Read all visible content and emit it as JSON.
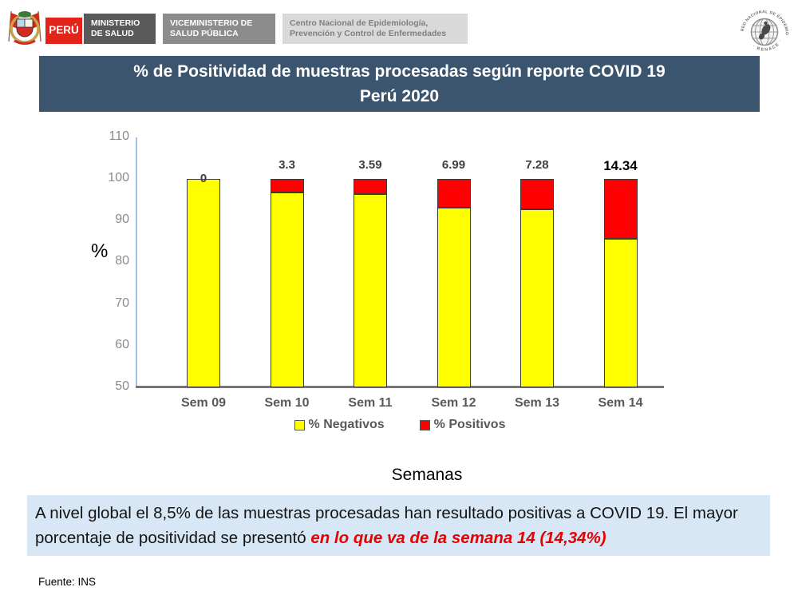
{
  "header": {
    "brand": [
      {
        "label": "PERÚ",
        "bg": "#e2231a",
        "fg": "#ffffff"
      },
      {
        "label": "MINISTERIO\nDE SALUD",
        "bg": "#595959",
        "fg": "#ffffff"
      },
      {
        "label": "VICEMINISTERIO DE\nSALUD PÚBLICA",
        "bg": "#8c8c8c",
        "fg": "#ffffff"
      },
      {
        "label": "Centro Nacional de Epidemiología,\nPrevención y Control de Enfermedades",
        "bg": "#d9d9d9",
        "fg": "#7f7f7f"
      }
    ],
    "renace": {
      "text_top": "RED NACIONAL DE EPIDEMIOLOGIA",
      "text_bottom": "· RENACE ·"
    }
  },
  "title": {
    "line1": "% de Positividad de muestras procesadas según reporte COVID 19",
    "line2": "Perú 2020",
    "bg": "#3c556f"
  },
  "chart_data": {
    "type": "bar",
    "stacked": true,
    "categories": [
      "Sem 09",
      "Sem 10",
      "Sem 11",
      "Sem 12",
      "Sem 13",
      "Sem 14"
    ],
    "series": [
      {
        "name": "% Negativos",
        "color": "#ffff00",
        "values": [
          100,
          96.7,
          96.41,
          93.01,
          92.72,
          85.66
        ]
      },
      {
        "name": "% Positivos",
        "color": "#ff0000",
        "values": [
          0,
          3.3,
          3.59,
          6.99,
          7.28,
          14.34
        ]
      }
    ],
    "bar_labels": [
      "0",
      "3.3",
      "3.59",
      "6.99",
      "7.28",
      "14.34"
    ],
    "ylabel": "%",
    "xlabel": "Semanas",
    "ylim": [
      50,
      110
    ],
    "y_ticks": [
      50,
      60,
      70,
      80,
      90,
      100,
      110
    ],
    "grid": false,
    "legend_position": "bottom",
    "axis_colors": {
      "y_axis": "#9cc2e5",
      "x_axis": "#767676"
    }
  },
  "info_box": {
    "text": "A nivel global el 8,5% de las muestras procesadas han resultado positivas a COVID 19. El mayor porcentaje de positividad se presentó ",
    "highlight": "en lo que va de la semana 14 (14,34%)",
    "bg": "#d7e7f5",
    "highlight_color": "#e60000"
  },
  "source": "Fuente: INS"
}
